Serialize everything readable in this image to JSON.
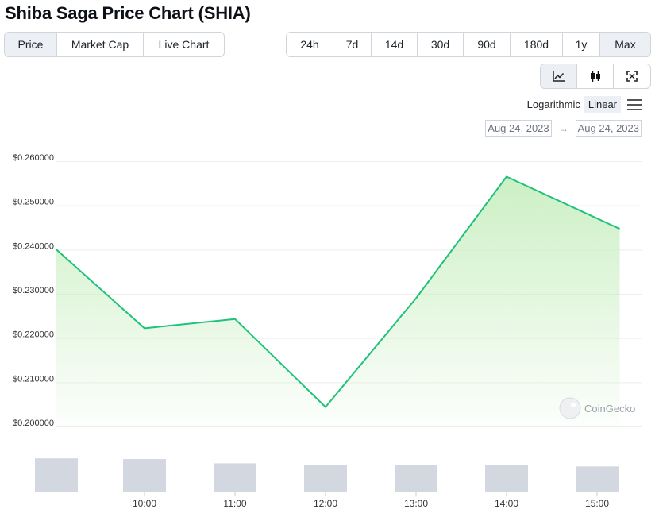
{
  "page": {
    "title": "Shiba Saga Price Chart (SHIA)"
  },
  "view_tabs": [
    {
      "label": "Price",
      "active": true
    },
    {
      "label": "Market Cap",
      "active": false
    },
    {
      "label": "Live Chart",
      "active": false
    }
  ],
  "range_tabs": [
    {
      "label": "24h",
      "active": false
    },
    {
      "label": "7d",
      "active": false
    },
    {
      "label": "14d",
      "active": false
    },
    {
      "label": "30d",
      "active": false
    },
    {
      "label": "90d",
      "active": false
    },
    {
      "label": "180d",
      "active": false
    },
    {
      "label": "1y",
      "active": false
    },
    {
      "label": "Max",
      "active": true
    }
  ],
  "chart_type_buttons": [
    {
      "icon": "line-chart-icon",
      "active": true
    },
    {
      "icon": "candlestick-icon",
      "active": false
    },
    {
      "icon": "expand-icon",
      "active": false
    }
  ],
  "scale": {
    "logarithmic_label": "Logarithmic",
    "linear_label": "Linear",
    "selected": "Linear"
  },
  "date_range": {
    "from": "Aug 24, 2023",
    "to": "Aug 24, 2023",
    "arrow": "→"
  },
  "watermark": "CoinGecko",
  "colors": {
    "line": "#1ec27a",
    "area_top": "#c9efc1",
    "volume_bar": "#d3d7e0"
  },
  "chart_data": {
    "type": "area",
    "x": [
      "09:00",
      "10:00",
      "11:00",
      "12:00",
      "13:00",
      "14:00",
      "15:15"
    ],
    "values": [
      0.24,
      0.2222,
      0.2243,
      0.2044,
      0.229,
      0.2565,
      0.2447
    ],
    "volume_relative": [
      0.95,
      0.93,
      0.81,
      0.76,
      0.76,
      0.76,
      0.72
    ],
    "x_ticks": [
      "10:00",
      "11:00",
      "12:00",
      "13:00",
      "14:00",
      "15:00"
    ],
    "y_ticks": [
      "$0.260000",
      "$0.250000",
      "$0.240000",
      "$0.230000",
      "$0.220000",
      "$0.210000",
      "$0.200000"
    ],
    "y_tick_values": [
      0.26,
      0.25,
      0.24,
      0.23,
      0.22,
      0.21,
      0.2
    ],
    "ylim": [
      0.197,
      0.264
    ],
    "grid": true,
    "scale": "linear"
  }
}
